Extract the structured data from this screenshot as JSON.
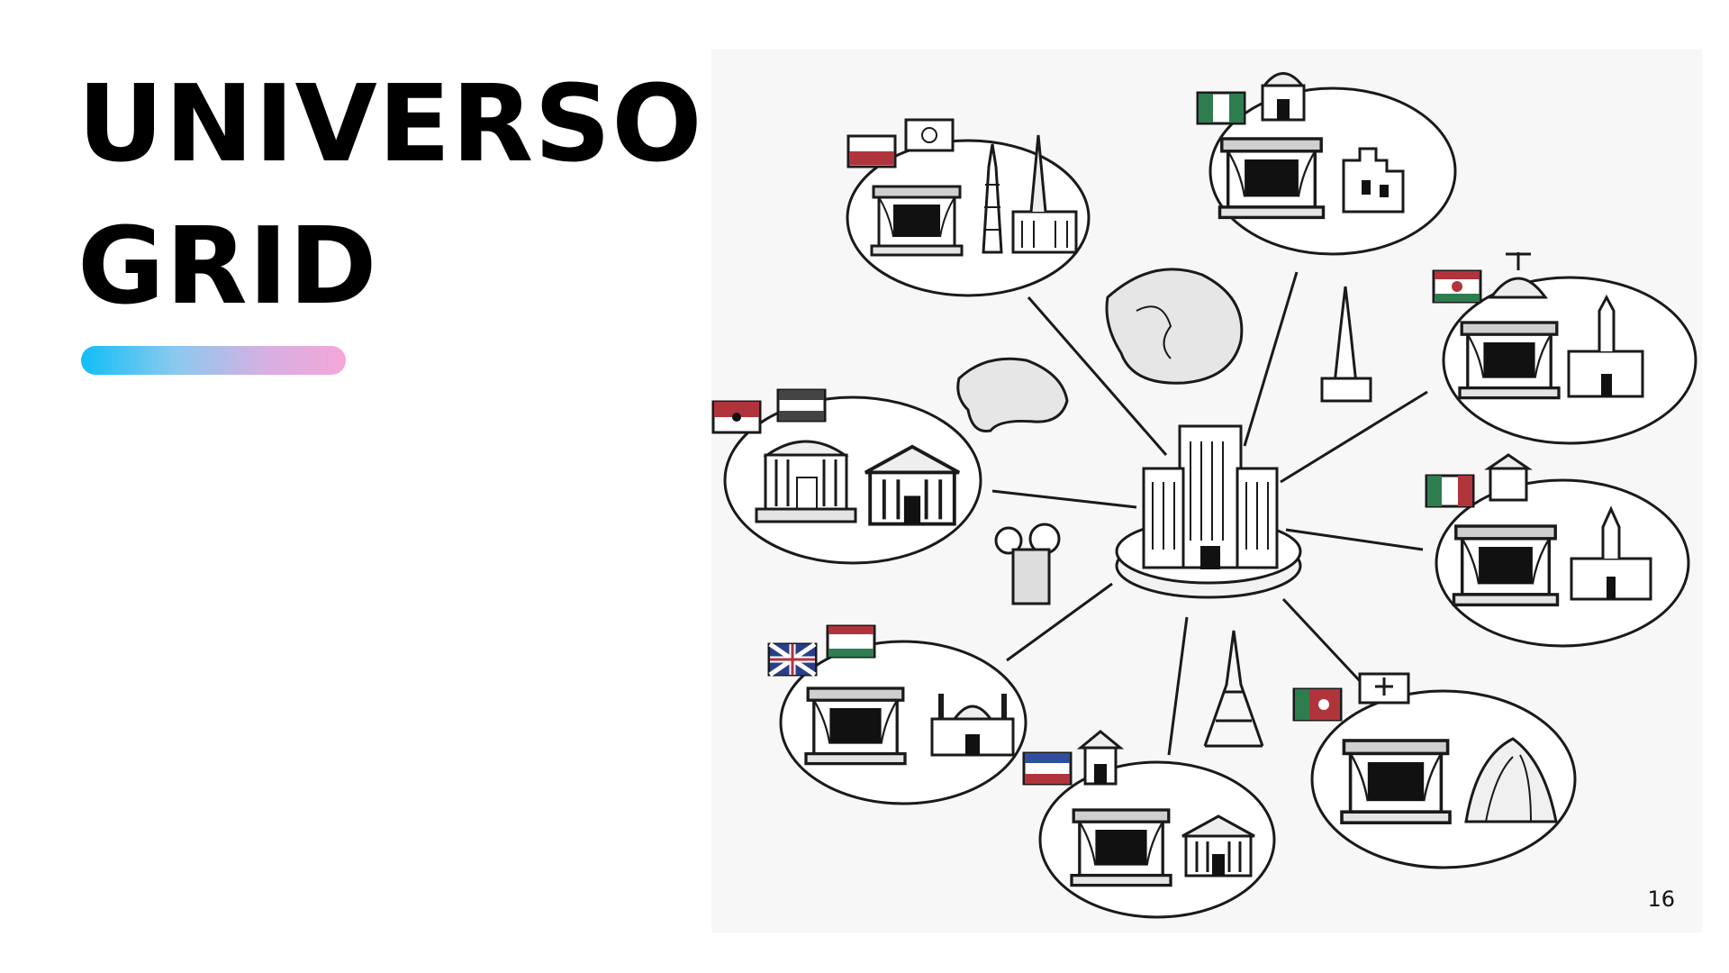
{
  "slide": {
    "title_line1": "UNIVERSO",
    "title_line2": "GRID",
    "page_number": "16"
  },
  "colors": {
    "title": "#000000",
    "accent_gradient": [
      "#0fbef6",
      "#f4a6d9"
    ],
    "ink": "#1a1a1a",
    "illustration_bg": "#f7f7f7"
  },
  "illustration": {
    "central_icon": "central-skyscraper-hub",
    "hubs": [
      {
        "id": "top-left",
        "icons": [
          "flag-icon",
          "flag-icon",
          "theater-stage-icon",
          "tower-icon",
          "monument-icon"
        ]
      },
      {
        "id": "top-center",
        "icons": [
          "flag-icon",
          "domed-building-icon",
          "theater-stage-icon",
          "castle-ruins-icon"
        ]
      },
      {
        "id": "right-top",
        "icons": [
          "flag-icon",
          "dome-icon",
          "theater-stage-icon",
          "church-icon"
        ]
      },
      {
        "id": "right-middle",
        "icons": [
          "flag-icon",
          "small-temple-icon",
          "theater-stage-icon",
          "cathedral-icon"
        ]
      },
      {
        "id": "bottom-right",
        "icons": [
          "flag-icon",
          "tomb-icon",
          "theater-stage-icon",
          "shell-hall-icon"
        ]
      },
      {
        "id": "bottom-center",
        "icons": [
          "flag-icon",
          "pagoda-icon",
          "theater-stage-icon",
          "palace-icon"
        ]
      },
      {
        "id": "bottom-left",
        "icons": [
          "flag-icon",
          "flag-icon",
          "theater-stage-icon",
          "mosque-icon"
        ]
      },
      {
        "id": "left",
        "icons": [
          "flag-icon",
          "flag-icon",
          "rotunda-icon",
          "classical-temple-icon"
        ]
      }
    ],
    "decorations": [
      "globe-icon",
      "world-map-icon",
      "tower-icon",
      "eiffel-tower-icon",
      "cluster-building-icon"
    ]
  }
}
